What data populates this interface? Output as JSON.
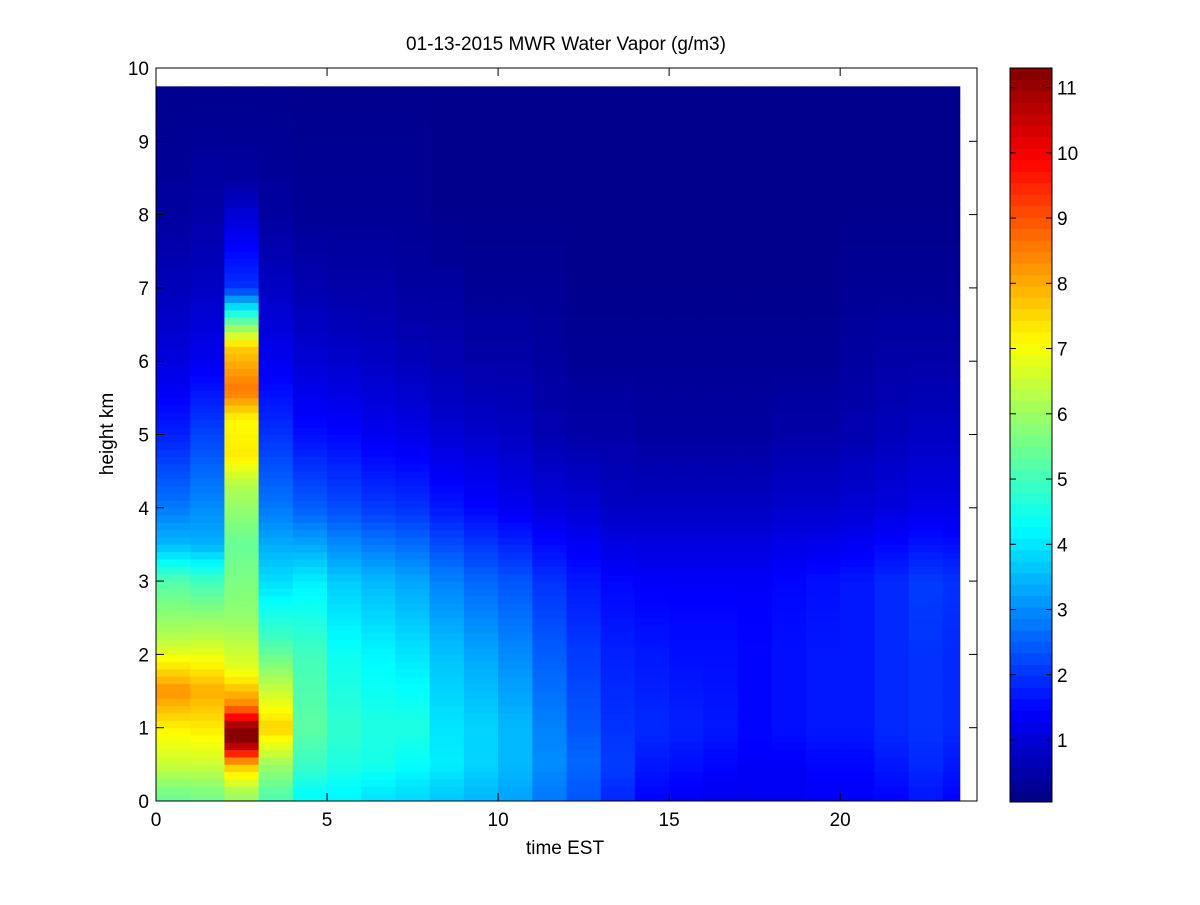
{
  "chart_data": {
    "type": "heatmap",
    "title": "01-13-2015 MWR Water Vapor (g/m3)",
    "xlabel": "time EST",
    "ylabel": "height km",
    "xlim": [
      0,
      24
    ],
    "ylim": [
      0,
      10
    ],
    "x_ticks": [
      0,
      5,
      10,
      15,
      20
    ],
    "y_ticks": [
      0,
      1,
      2,
      3,
      4,
      5,
      6,
      7,
      8,
      9,
      10
    ],
    "colormap": "jet",
    "colorbar": {
      "range": [
        0.05,
        11.3
      ],
      "ticks": [
        1,
        2,
        3,
        4,
        5,
        6,
        7,
        8,
        9,
        10,
        11
      ]
    },
    "grid": false,
    "time_bin_hours": 1,
    "columns": [
      {
        "time": 0,
        "profile": [
          [
            0.1,
            5.5
          ],
          [
            0.5,
            6.5
          ],
          [
            1.0,
            7.2
          ],
          [
            1.5,
            8.3
          ],
          [
            2.2,
            6.3
          ],
          [
            3.0,
            5.2
          ],
          [
            3.5,
            3.5
          ],
          [
            4.0,
            2.8
          ],
          [
            5.0,
            1.8
          ],
          [
            6.0,
            1.1
          ],
          [
            7.0,
            0.7
          ],
          [
            8.0,
            0.4
          ],
          [
            9.7,
            0.2
          ]
        ]
      },
      {
        "time": 1,
        "profile": [
          [
            0.1,
            5.6
          ],
          [
            0.5,
            6.5
          ],
          [
            1.0,
            7.3
          ],
          [
            1.5,
            8.0
          ],
          [
            2.2,
            6.4
          ],
          [
            3.0,
            5.0
          ],
          [
            3.5,
            3.4
          ],
          [
            4.0,
            3.0
          ],
          [
            5.0,
            2.2
          ],
          [
            6.0,
            1.3
          ],
          [
            7.0,
            0.8
          ],
          [
            8.0,
            0.5
          ],
          [
            9.7,
            0.2
          ]
        ]
      },
      {
        "time": 2,
        "profile": [
          [
            0.1,
            6.0
          ],
          [
            0.5,
            7.8
          ],
          [
            0.8,
            11.2
          ],
          [
            1.0,
            11.2
          ],
          [
            1.3,
            8.5
          ],
          [
            1.8,
            6.8
          ],
          [
            2.5,
            5.9
          ],
          [
            3.5,
            5.4
          ],
          [
            4.3,
            6.2
          ],
          [
            4.7,
            7.3
          ],
          [
            5.2,
            7.1
          ],
          [
            5.6,
            8.6
          ],
          [
            6.2,
            7.6
          ],
          [
            6.6,
            5.0
          ],
          [
            7.0,
            2.0
          ],
          [
            8.0,
            1.0
          ],
          [
            8.5,
            0.4
          ],
          [
            9.7,
            0.2
          ]
        ]
      },
      {
        "time": 3,
        "profile": [
          [
            0.1,
            5.2
          ],
          [
            0.5,
            6.0
          ],
          [
            1.0,
            7.6
          ],
          [
            1.5,
            6.5
          ],
          [
            2.2,
            5.0
          ],
          [
            3.0,
            3.9
          ],
          [
            4.0,
            2.8
          ],
          [
            5.0,
            2.0
          ],
          [
            6.0,
            1.3
          ],
          [
            7.0,
            0.8
          ],
          [
            8.0,
            0.4
          ],
          [
            9.7,
            0.2
          ]
        ]
      },
      {
        "time": 4,
        "profile": [
          [
            0.1,
            4.3
          ],
          [
            0.5,
            4.9
          ],
          [
            1.0,
            5.3
          ],
          [
            2.0,
            5.0
          ],
          [
            3.0,
            4.1
          ],
          [
            4.0,
            2.5
          ],
          [
            5.0,
            1.6
          ],
          [
            6.0,
            1.0
          ],
          [
            7.0,
            0.6
          ],
          [
            8.0,
            0.3
          ],
          [
            9.7,
            0.2
          ]
        ]
      },
      {
        "time": 5,
        "profile": [
          [
            0.1,
            4.2
          ],
          [
            0.5,
            4.6
          ],
          [
            1.0,
            4.8
          ],
          [
            2.0,
            4.4
          ],
          [
            3.0,
            3.7
          ],
          [
            4.0,
            2.3
          ],
          [
            5.0,
            1.5
          ],
          [
            6.0,
            0.9
          ],
          [
            7.0,
            0.5
          ],
          [
            8.0,
            0.3
          ],
          [
            9.7,
            0.2
          ]
        ]
      },
      {
        "time": 6,
        "profile": [
          [
            0.1,
            4.0
          ],
          [
            0.5,
            4.5
          ],
          [
            1.0,
            4.6
          ],
          [
            2.0,
            4.2
          ],
          [
            3.0,
            3.5
          ],
          [
            4.0,
            2.1
          ],
          [
            5.0,
            1.3
          ],
          [
            6.0,
            0.8
          ],
          [
            7.0,
            0.5
          ],
          [
            8.0,
            0.3
          ],
          [
            9.7,
            0.2
          ]
        ]
      },
      {
        "time": 7,
        "profile": [
          [
            0.1,
            3.9
          ],
          [
            0.5,
            4.3
          ],
          [
            1.0,
            4.6
          ],
          [
            2.0,
            4.0
          ],
          [
            3.0,
            3.3
          ],
          [
            4.0,
            2.0
          ],
          [
            5.0,
            1.2
          ],
          [
            6.0,
            0.7
          ],
          [
            7.0,
            0.4
          ],
          [
            8.0,
            0.3
          ],
          [
            9.7,
            0.2
          ]
        ]
      },
      {
        "time": 8,
        "profile": [
          [
            0.1,
            3.7
          ],
          [
            0.5,
            4.1
          ],
          [
            1.0,
            4.0
          ],
          [
            2.0,
            3.6
          ],
          [
            3.0,
            2.9
          ],
          [
            4.0,
            1.7
          ],
          [
            5.0,
            1.0
          ],
          [
            6.0,
            0.6
          ],
          [
            7.0,
            0.4
          ],
          [
            8.0,
            0.2
          ],
          [
            9.7,
            0.2
          ]
        ]
      },
      {
        "time": 9,
        "profile": [
          [
            0.1,
            3.5
          ],
          [
            0.5,
            3.8
          ],
          [
            1.0,
            3.8
          ],
          [
            2.0,
            3.3
          ],
          [
            3.0,
            2.6
          ],
          [
            4.0,
            1.5
          ],
          [
            5.0,
            0.9
          ],
          [
            6.0,
            0.5
          ],
          [
            7.0,
            0.3
          ],
          [
            8.0,
            0.2
          ],
          [
            9.7,
            0.2
          ]
        ]
      },
      {
        "time": 10,
        "profile": [
          [
            0.1,
            3.3
          ],
          [
            0.5,
            3.5
          ],
          [
            1.0,
            3.5
          ],
          [
            2.0,
            3.0
          ],
          [
            3.0,
            2.4
          ],
          [
            4.0,
            1.3
          ],
          [
            5.0,
            0.8
          ],
          [
            6.0,
            0.5
          ],
          [
            7.0,
            0.3
          ],
          [
            8.0,
            0.2
          ],
          [
            9.7,
            0.2
          ]
        ]
      },
      {
        "time": 11,
        "profile": [
          [
            0.1,
            2.8
          ],
          [
            0.5,
            3.0
          ],
          [
            1.0,
            2.9
          ],
          [
            2.0,
            2.5
          ],
          [
            3.0,
            2.0
          ],
          [
            4.0,
            1.1
          ],
          [
            5.0,
            0.6
          ],
          [
            6.0,
            0.4
          ],
          [
            7.0,
            0.3
          ],
          [
            8.0,
            0.2
          ],
          [
            9.7,
            0.2
          ]
        ]
      },
      {
        "time": 12,
        "profile": [
          [
            0.1,
            2.4
          ],
          [
            0.5,
            2.6
          ],
          [
            1.0,
            2.4
          ],
          [
            2.0,
            2.1
          ],
          [
            3.0,
            1.7
          ],
          [
            4.0,
            1.0
          ],
          [
            5.0,
            0.5
          ],
          [
            6.0,
            0.3
          ],
          [
            7.0,
            0.2
          ],
          [
            8.0,
            0.2
          ],
          [
            9.7,
            0.2
          ]
        ]
      },
      {
        "time": 13,
        "profile": [
          [
            0.1,
            1.9
          ],
          [
            0.5,
            2.1
          ],
          [
            1.0,
            2.0
          ],
          [
            2.0,
            1.8
          ],
          [
            3.0,
            1.5
          ],
          [
            4.0,
            0.8
          ],
          [
            5.0,
            0.5
          ],
          [
            6.0,
            0.3
          ],
          [
            7.0,
            0.2
          ],
          [
            8.0,
            0.2
          ],
          [
            9.7,
            0.2
          ]
        ]
      },
      {
        "time": 14,
        "profile": [
          [
            0.1,
            1.5
          ],
          [
            0.5,
            1.7
          ],
          [
            1.0,
            1.9
          ],
          [
            2.0,
            1.7
          ],
          [
            3.0,
            1.4
          ],
          [
            4.0,
            0.8
          ],
          [
            5.0,
            0.4
          ],
          [
            6.0,
            0.3
          ],
          [
            7.0,
            0.2
          ],
          [
            8.0,
            0.2
          ],
          [
            9.7,
            0.2
          ]
        ]
      },
      {
        "time": 15,
        "profile": [
          [
            0.1,
            1.4
          ],
          [
            0.5,
            1.6
          ],
          [
            1.0,
            1.8
          ],
          [
            2.0,
            1.6
          ],
          [
            3.0,
            1.4
          ],
          [
            4.0,
            0.8
          ],
          [
            5.0,
            0.4
          ],
          [
            6.0,
            0.3
          ],
          [
            7.0,
            0.2
          ],
          [
            8.0,
            0.2
          ],
          [
            9.7,
            0.2
          ]
        ]
      },
      {
        "time": 16,
        "profile": [
          [
            0.1,
            1.3
          ],
          [
            0.5,
            1.5
          ],
          [
            1.0,
            1.7
          ],
          [
            2.0,
            1.6
          ],
          [
            3.0,
            1.4
          ],
          [
            4.0,
            0.8
          ],
          [
            5.0,
            0.4
          ],
          [
            6.0,
            0.3
          ],
          [
            7.0,
            0.2
          ],
          [
            8.0,
            0.2
          ],
          [
            9.7,
            0.2
          ]
        ]
      },
      {
        "time": 17,
        "profile": [
          [
            0.1,
            1.3
          ],
          [
            0.5,
            1.4
          ],
          [
            1.0,
            1.5
          ],
          [
            2.0,
            1.5
          ],
          [
            3.0,
            1.4
          ],
          [
            4.0,
            0.8
          ],
          [
            5.0,
            0.4
          ],
          [
            6.0,
            0.3
          ],
          [
            7.0,
            0.2
          ],
          [
            8.0,
            0.2
          ],
          [
            9.7,
            0.2
          ]
        ]
      },
      {
        "time": 18,
        "profile": [
          [
            0.1,
            1.3
          ],
          [
            0.5,
            1.4
          ],
          [
            1.0,
            1.6
          ],
          [
            2.0,
            1.6
          ],
          [
            3.0,
            1.5
          ],
          [
            4.0,
            0.9
          ],
          [
            5.0,
            0.5
          ],
          [
            6.0,
            0.3
          ],
          [
            7.0,
            0.2
          ],
          [
            8.0,
            0.2
          ],
          [
            9.7,
            0.2
          ]
        ]
      },
      {
        "time": 19,
        "profile": [
          [
            0.1,
            1.4
          ],
          [
            0.5,
            1.5
          ],
          [
            1.0,
            1.7
          ],
          [
            2.0,
            1.7
          ],
          [
            3.0,
            1.6
          ],
          [
            4.0,
            0.9
          ],
          [
            5.0,
            0.5
          ],
          [
            6.0,
            0.3
          ],
          [
            7.0,
            0.2
          ],
          [
            8.0,
            0.2
          ],
          [
            9.7,
            0.2
          ]
        ]
      },
      {
        "time": 20,
        "profile": [
          [
            0.1,
            1.4
          ],
          [
            0.5,
            1.5
          ],
          [
            1.0,
            1.7
          ],
          [
            2.0,
            1.7
          ],
          [
            3.0,
            1.7
          ],
          [
            4.0,
            1.0
          ],
          [
            5.0,
            0.6
          ],
          [
            6.0,
            0.4
          ],
          [
            7.0,
            0.3
          ],
          [
            8.0,
            0.2
          ],
          [
            9.7,
            0.2
          ]
        ]
      },
      {
        "time": 21,
        "profile": [
          [
            0.1,
            1.5
          ],
          [
            0.5,
            1.7
          ],
          [
            1.0,
            1.9
          ],
          [
            2.0,
            1.9
          ],
          [
            3.0,
            1.9
          ],
          [
            4.0,
            1.1
          ],
          [
            5.0,
            0.7
          ],
          [
            6.0,
            0.5
          ],
          [
            7.0,
            0.3
          ],
          [
            8.0,
            0.2
          ],
          [
            9.7,
            0.2
          ]
        ]
      },
      {
        "time": 22,
        "profile": [
          [
            0.1,
            1.7
          ],
          [
            0.5,
            1.9
          ],
          [
            1.0,
            2.0
          ],
          [
            2.0,
            2.0
          ],
          [
            3.0,
            2.1
          ],
          [
            4.0,
            1.2
          ],
          [
            5.0,
            0.8
          ],
          [
            6.0,
            0.5
          ],
          [
            7.0,
            0.3
          ],
          [
            8.0,
            0.2
          ],
          [
            9.7,
            0.2
          ]
        ]
      },
      {
        "time": 23,
        "profile": [
          [
            0.1,
            1.5
          ],
          [
            0.5,
            1.7
          ],
          [
            1.0,
            1.9
          ],
          [
            2.0,
            1.9
          ],
          [
            3.0,
            2.0
          ],
          [
            4.0,
            1.2
          ],
          [
            5.0,
            0.8
          ],
          [
            6.0,
            0.5
          ],
          [
            7.0,
            0.3
          ],
          [
            8.0,
            0.2
          ],
          [
            9.7,
            0.2
          ]
        ]
      }
    ]
  }
}
